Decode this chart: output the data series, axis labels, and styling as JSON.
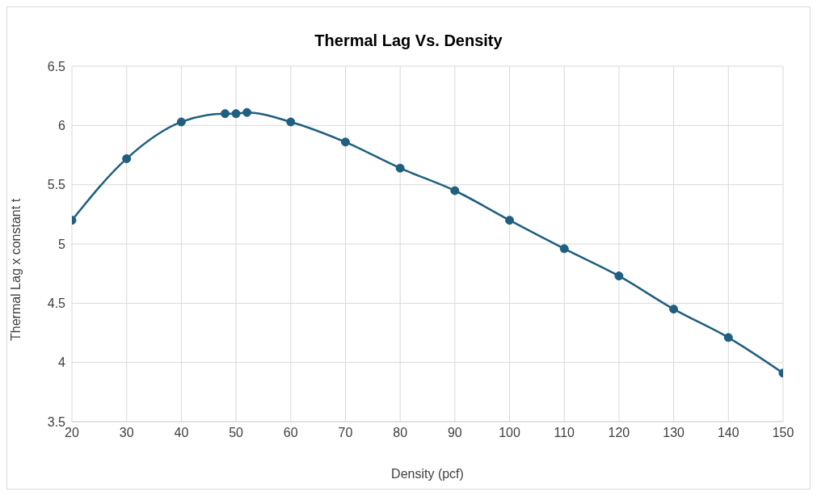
{
  "chart_data": {
    "type": "line",
    "title": "Thermal Lag Vs. Density",
    "xlabel": "Density (pcf)",
    "ylabel": "Thermal Lag x constant t",
    "x": [
      20,
      30,
      40,
      48,
      50,
      52,
      60,
      70,
      80,
      90,
      100,
      110,
      120,
      130,
      140,
      150
    ],
    "series": [
      {
        "color": "#1f5f7f",
        "values": [
          5.2,
          5.72,
          6.03,
          6.1,
          6.1,
          6.11,
          6.03,
          5.86,
          5.64,
          5.45,
          5.2,
          4.96,
          4.73,
          4.45,
          4.21,
          3.91
        ]
      }
    ],
    "xlim": [
      20,
      150
    ],
    "xticks": [
      20,
      30,
      40,
      50,
      60,
      70,
      80,
      90,
      100,
      110,
      120,
      130,
      140,
      150
    ],
    "ylim": [
      3.5,
      6.5
    ],
    "yticks": [
      3.5,
      4,
      4.5,
      5,
      5.5,
      6,
      6.5
    ],
    "grid": true,
    "marker": "circle",
    "line_style": "solid"
  }
}
